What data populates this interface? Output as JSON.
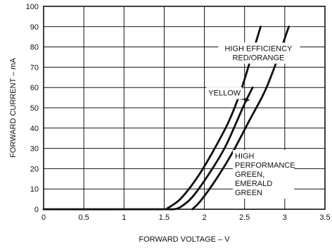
{
  "chart_data": {
    "type": "line",
    "xlabel": "FORWARD VOLTAGE – V",
    "ylabel": "FORWARD CURRENT – mA",
    "xlim": [
      0,
      3.5
    ],
    "ylim": [
      0,
      100
    ],
    "xticks": [
      "0",
      "0.5",
      "1",
      "1.5",
      "2",
      "2.5",
      "3",
      "3.5"
    ],
    "yticks": [
      "0",
      "10",
      "20",
      "30",
      "40",
      "50",
      "60",
      "70",
      "80",
      "90",
      "100"
    ],
    "grid": true,
    "series": [
      {
        "name": "HIGH EFFICIENCY RED/ORANGE",
        "points": [
          [
            0,
            0
          ],
          [
            1.5,
            0
          ],
          [
            1.54,
            0.5
          ],
          [
            1.7,
            5
          ],
          [
            1.9,
            15
          ],
          [
            2.1,
            28
          ],
          [
            2.3,
            43
          ],
          [
            2.45,
            58
          ],
          [
            2.6,
            77
          ],
          [
            2.7,
            90
          ]
        ]
      },
      {
        "name": "YELLOW",
        "points": [
          [
            1.62,
            0
          ],
          [
            1.7,
            1
          ],
          [
            1.85,
            6
          ],
          [
            2.05,
            17
          ],
          [
            2.25,
            30
          ],
          [
            2.4,
            43
          ],
          [
            2.5,
            52
          ],
          [
            2.6,
            60
          ]
        ]
      },
      {
        "name": "HIGH PERFORMANCE GREEN, EMERALD GREEN",
        "points": [
          [
            1.85,
            0
          ],
          [
            1.95,
            4
          ],
          [
            2.15,
            15
          ],
          [
            2.35,
            28
          ],
          [
            2.55,
            43
          ],
          [
            2.75,
            58
          ],
          [
            2.9,
            73
          ],
          [
            3.05,
            90
          ]
        ]
      }
    ],
    "annotations": [
      {
        "lines": [
          "HIGH EFFICIENCY",
          "RED/ORANGE"
        ],
        "x": 2.2,
        "y": 78
      },
      {
        "lines": [
          "YELLOW"
        ],
        "x": 2.05,
        "y": 56
      },
      {
        "lines": [
          "HIGH",
          "PERFORMANCE",
          "GREEN,",
          "EMERALD",
          "GREEN"
        ],
        "x": 2.38,
        "y": 25
      }
    ]
  }
}
